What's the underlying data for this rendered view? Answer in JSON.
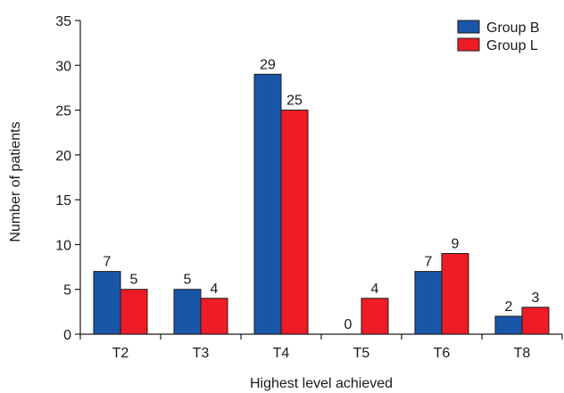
{
  "chart_data": {
    "type": "bar",
    "title": "",
    "xlabel": "Highest level achieved",
    "ylabel": "Number of patients",
    "categories": [
      "T2",
      "T3",
      "T4",
      "T5",
      "T6",
      "T8"
    ],
    "series": [
      {
        "name": "Group B",
        "values": [
          7,
          5,
          29,
          0,
          7,
          2
        ]
      },
      {
        "name": "Group L",
        "values": [
          5,
          4,
          25,
          4,
          9,
          3
        ]
      }
    ],
    "ylim": [
      0,
      35
    ],
    "yticks": [
      0,
      5,
      10,
      15,
      20,
      25,
      30,
      35
    ],
    "grid": false,
    "legend": "top-right",
    "colors": [
      "#1a56a8",
      "#ee1c25"
    ]
  }
}
